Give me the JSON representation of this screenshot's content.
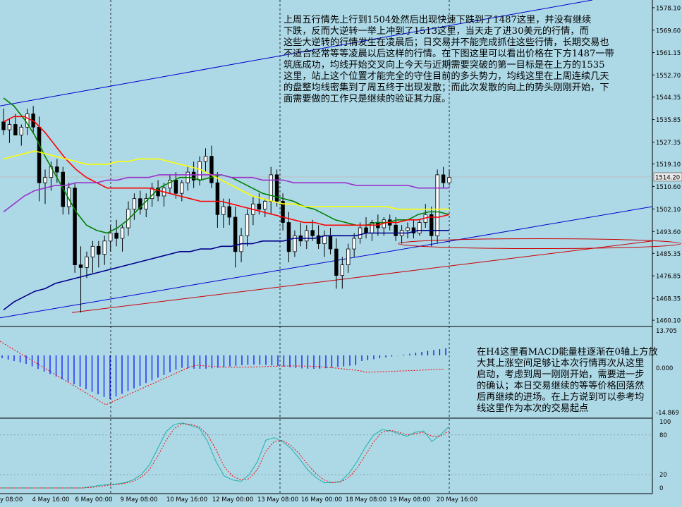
{
  "chart_data": [
    {
      "type": "candlestick",
      "panel": "main",
      "price_axis_labels": [
        "1578.10",
        "1569.60",
        "1561.15",
        "1552.70",
        "1544.35",
        "1535.85",
        "1527.35",
        "1519.10",
        "1514.20",
        "1510.60",
        "1502.10",
        "1493.60",
        "1485.35",
        "1476.85",
        "1468.35",
        "1460.10"
      ],
      "current_price": "1514.20",
      "ylim": [
        1458,
        1581
      ],
      "x_labels": [
        "4 May 16:00",
        "6 May 00:00",
        "9 May 08:00",
        "10 May 16:00",
        "12 May 00:00",
        "13 May 08:00",
        "16 May 00:00",
        "18 May 08:00",
        "19 May 08:00",
        "20 May 16:00"
      ],
      "x_label_partial": "y 08:00",
      "candles": [
        {
          "o": 1535,
          "h": 1540,
          "l": 1530,
          "c": 1532
        },
        {
          "o": 1532,
          "h": 1536,
          "l": 1527,
          "c": 1534
        },
        {
          "o": 1534,
          "h": 1538,
          "l": 1530,
          "c": 1530
        },
        {
          "o": 1530,
          "h": 1534,
          "l": 1526,
          "c": 1533
        },
        {
          "o": 1533,
          "h": 1540,
          "l": 1530,
          "c": 1538
        },
        {
          "o": 1538,
          "h": 1541,
          "l": 1531,
          "c": 1533
        },
        {
          "o": 1533,
          "h": 1537,
          "l": 1505,
          "c": 1512
        },
        {
          "o": 1512,
          "h": 1517,
          "l": 1504,
          "c": 1514
        },
        {
          "o": 1514,
          "h": 1520,
          "l": 1509,
          "c": 1518
        },
        {
          "o": 1518,
          "h": 1521,
          "l": 1512,
          "c": 1516
        },
        {
          "o": 1516,
          "h": 1518,
          "l": 1500,
          "c": 1503
        },
        {
          "o": 1503,
          "h": 1512,
          "l": 1500,
          "c": 1510
        },
        {
          "o": 1510,
          "h": 1512,
          "l": 1478,
          "c": 1481
        },
        {
          "o": 1481,
          "h": 1488,
          "l": 1463,
          "c": 1480
        },
        {
          "o": 1480,
          "h": 1486,
          "l": 1476,
          "c": 1484
        },
        {
          "o": 1484,
          "h": 1490,
          "l": 1478,
          "c": 1488
        },
        {
          "o": 1488,
          "h": 1490,
          "l": 1480,
          "c": 1485
        },
        {
          "o": 1485,
          "h": 1492,
          "l": 1481,
          "c": 1490
        },
        {
          "o": 1490,
          "h": 1496,
          "l": 1486,
          "c": 1493
        },
        {
          "o": 1493,
          "h": 1498,
          "l": 1488,
          "c": 1491
        },
        {
          "o": 1491,
          "h": 1496,
          "l": 1486,
          "c": 1495
        },
        {
          "o": 1495,
          "h": 1505,
          "l": 1492,
          "c": 1502
        },
        {
          "o": 1502,
          "h": 1508,
          "l": 1498,
          "c": 1506
        },
        {
          "o": 1506,
          "h": 1509,
          "l": 1500,
          "c": 1502
        },
        {
          "o": 1502,
          "h": 1508,
          "l": 1499,
          "c": 1506
        },
        {
          "o": 1506,
          "h": 1512,
          "l": 1503,
          "c": 1510
        },
        {
          "o": 1510,
          "h": 1513,
          "l": 1505,
          "c": 1507
        },
        {
          "o": 1507,
          "h": 1512,
          "l": 1503,
          "c": 1510
        },
        {
          "o": 1510,
          "h": 1515,
          "l": 1508,
          "c": 1513
        },
        {
          "o": 1513,
          "h": 1516,
          "l": 1506,
          "c": 1508
        },
        {
          "o": 1508,
          "h": 1513,
          "l": 1505,
          "c": 1512
        },
        {
          "o": 1512,
          "h": 1518,
          "l": 1509,
          "c": 1516
        },
        {
          "o": 1516,
          "h": 1520,
          "l": 1510,
          "c": 1513
        },
        {
          "o": 1513,
          "h": 1522,
          "l": 1511,
          "c": 1520
        },
        {
          "o": 1520,
          "h": 1525,
          "l": 1516,
          "c": 1522
        },
        {
          "o": 1522,
          "h": 1526,
          "l": 1510,
          "c": 1512
        },
        {
          "o": 1512,
          "h": 1516,
          "l": 1495,
          "c": 1500
        },
        {
          "o": 1500,
          "h": 1506,
          "l": 1495,
          "c": 1503
        },
        {
          "o": 1503,
          "h": 1506,
          "l": 1496,
          "c": 1499
        },
        {
          "o": 1499,
          "h": 1503,
          "l": 1480,
          "c": 1486
        },
        {
          "o": 1486,
          "h": 1495,
          "l": 1482,
          "c": 1492
        },
        {
          "o": 1492,
          "h": 1502,
          "l": 1488,
          "c": 1500
        },
        {
          "o": 1500,
          "h": 1507,
          "l": 1496,
          "c": 1504
        },
        {
          "o": 1504,
          "h": 1508,
          "l": 1500,
          "c": 1502
        },
        {
          "o": 1502,
          "h": 1506,
          "l": 1499,
          "c": 1505
        },
        {
          "o": 1505,
          "h": 1518,
          "l": 1500,
          "c": 1515
        },
        {
          "o": 1515,
          "h": 1517,
          "l": 1503,
          "c": 1505
        },
        {
          "o": 1505,
          "h": 1508,
          "l": 1494,
          "c": 1497
        },
        {
          "o": 1497,
          "h": 1501,
          "l": 1482,
          "c": 1486
        },
        {
          "o": 1486,
          "h": 1494,
          "l": 1484,
          "c": 1492
        },
        {
          "o": 1492,
          "h": 1497,
          "l": 1488,
          "c": 1490
        },
        {
          "o": 1490,
          "h": 1496,
          "l": 1487,
          "c": 1494
        },
        {
          "o": 1494,
          "h": 1498,
          "l": 1490,
          "c": 1492
        },
        {
          "o": 1492,
          "h": 1496,
          "l": 1487,
          "c": 1489
        },
        {
          "o": 1489,
          "h": 1494,
          "l": 1484,
          "c": 1492
        },
        {
          "o": 1492,
          "h": 1495,
          "l": 1485,
          "c": 1487
        },
        {
          "o": 1487,
          "h": 1491,
          "l": 1472,
          "c": 1477
        },
        {
          "o": 1477,
          "h": 1484,
          "l": 1472,
          "c": 1481
        },
        {
          "o": 1481,
          "h": 1489,
          "l": 1478,
          "c": 1487
        },
        {
          "o": 1487,
          "h": 1493,
          "l": 1484,
          "c": 1491
        },
        {
          "o": 1491,
          "h": 1497,
          "l": 1489,
          "c": 1495
        },
        {
          "o": 1495,
          "h": 1499,
          "l": 1491,
          "c": 1493
        },
        {
          "o": 1493,
          "h": 1498,
          "l": 1490,
          "c": 1497
        },
        {
          "o": 1497,
          "h": 1500,
          "l": 1492,
          "c": 1495
        },
        {
          "o": 1495,
          "h": 1499,
          "l": 1492,
          "c": 1498
        },
        {
          "o": 1498,
          "h": 1500,
          "l": 1494,
          "c": 1496
        },
        {
          "o": 1496,
          "h": 1499,
          "l": 1490,
          "c": 1492
        },
        {
          "o": 1492,
          "h": 1496,
          "l": 1489,
          "c": 1494
        },
        {
          "o": 1494,
          "h": 1497,
          "l": 1491,
          "c": 1495
        },
        {
          "o": 1495,
          "h": 1498,
          "l": 1491,
          "c": 1493
        },
        {
          "o": 1493,
          "h": 1498,
          "l": 1492,
          "c": 1497
        },
        {
          "o": 1497,
          "h": 1504,
          "l": 1495,
          "c": 1500
        },
        {
          "o": 1500,
          "h": 1503,
          "l": 1488,
          "c": 1492
        },
        {
          "o": 1492,
          "h": 1517,
          "l": 1489,
          "c": 1515
        },
        {
          "o": 1515,
          "h": 1518,
          "l": 1510,
          "c": 1512
        },
        {
          "o": 1512,
          "h": 1517,
          "l": 1511,
          "c": 1514
        }
      ],
      "moving_averages": [
        {
          "color": "#008000",
          "values": [
            1544,
            1541,
            1536,
            1530,
            1522,
            1515,
            1508,
            1501,
            1496,
            1494,
            1493,
            1495,
            1498,
            1502,
            1506,
            1510,
            1512,
            1514,
            1514,
            1513,
            1514,
            1515,
            1514,
            1512,
            1510,
            1508,
            1507,
            1506,
            1505,
            1503,
            1502,
            1500,
            1498,
            1497,
            1496,
            1496,
            1497,
            1497,
            1498,
            1498,
            1500,
            1501,
            1501,
            1500
          ]
        },
        {
          "color": "#ff0000",
          "values": [
            1535,
            1537,
            1537,
            1535,
            1531,
            1526,
            1521,
            1517,
            1514,
            1512,
            1510,
            1510,
            1510,
            1510,
            1510,
            1509,
            1508,
            1507,
            1506,
            1505,
            1505,
            1505,
            1504,
            1503,
            1502,
            1501,
            1500,
            1499,
            1498,
            1497,
            1497,
            1496,
            1496,
            1496,
            1496,
            1496,
            1496,
            1497,
            1497,
            1498,
            1498,
            1499,
            1499,
            1500
          ]
        },
        {
          "color": "#ffff00",
          "values": [
            1521,
            1522,
            1523,
            1524,
            1523,
            1522,
            1521,
            1520,
            1519,
            1519,
            1519,
            1520,
            1520,
            1521,
            1521,
            1521,
            1520,
            1519,
            1518,
            1517,
            1515,
            1513,
            1511,
            1509,
            1507,
            1506,
            1505,
            1504,
            1504,
            1503,
            1503,
            1503,
            1503,
            1503,
            1503,
            1503,
            1503,
            1503,
            1502,
            1502,
            1502,
            1502,
            1502,
            1502
          ]
        },
        {
          "color": "#9932cc",
          "values": [
            1501,
            1504,
            1507,
            1509,
            1510,
            1511,
            1511,
            1512,
            1512,
            1512,
            1513,
            1513,
            1514,
            1514,
            1514,
            1515,
            1515,
            1515,
            1515,
            1515,
            1515,
            1515,
            1514,
            1514,
            1514,
            1513,
            1513,
            1513,
            1512,
            1512,
            1512,
            1512,
            1512,
            1512,
            1511,
            1511,
            1511,
            1511,
            1511,
            1511,
            1510,
            1510,
            1510,
            1510
          ]
        },
        {
          "color": "#00008b",
          "values": [
            1464,
            1467,
            1469,
            1471,
            1472,
            1474,
            1475,
            1476,
            1477,
            1478,
            1479,
            1480,
            1481,
            1482,
            1483,
            1484,
            1485,
            1486,
            1486,
            1487,
            1487,
            1488,
            1488,
            1489,
            1489,
            1490,
            1490,
            1490,
            1491,
            1491,
            1491,
            1492,
            1492,
            1492,
            1492,
            1493,
            1493,
            1493,
            1493,
            1493,
            1494,
            1494,
            1494,
            1494
          ]
        }
      ]
    },
    {
      "type": "histogram",
      "panel": "MACD",
      "axis_labels": [
        "13.705",
        "0.000",
        "-14.869"
      ],
      "signal_color": "#ff0000",
      "bar_color": "#0000ff"
    },
    {
      "type": "line",
      "panel": "stochastic",
      "axis_labels": [
        "100",
        "80",
        "20",
        "0"
      ]
    }
  ],
  "annotations": {
    "main_note": "上周五行情先上行到1504处然后出现快速下跌到了1487这里，并没有继续\n下跌，反而大逆转一举上冲到了1513这里，当天走了进30美元的行情，而\n这些大逆转的行情发生在凌晨后；日交易并不能完成抓住这些行情，长期交易也\n不适合经常等等凌晨以后这样的行情。在下图这里可以看出价格在下方1487一带\n筑底成功，均线开始交叉向上今天与近期需要突破的第一目标是在上方的1535\n这里，站上这个位置才能完全的守住目前的多头势力，均线这里在上周连续几天\n的盘整均线密集到了周五终于出现发散；而此次发散的向上的势头刚刚开始，下\n面需要做的工作只是继续的验证其力度。",
    "macd_note": "在H4这里看MACD能量柱逐渐在0轴上方放\n大其上涨空间足够让本次行情再次从这里\n启动，考虑到周一刚刚开始，需要进一步\n的确认；本日交易继续的等等价格回落然\n后再继续的进场。在上方说到可以参考均\n线这里作为本次的交易起点"
  },
  "colors": {
    "background": "#add8e6",
    "bull_candle": "#ffffff",
    "bear_candle": "#000000",
    "trendline_blue": "#0000cd",
    "trendline_red": "#cd0000",
    "ellipse": "#cd0000"
  }
}
